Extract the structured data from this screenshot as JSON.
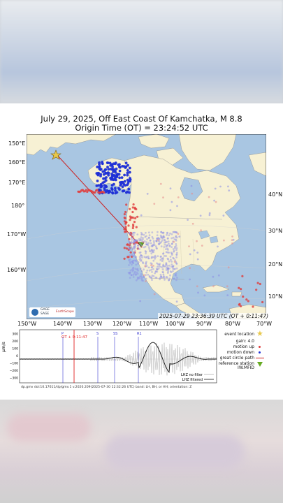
{
  "title": {
    "line1": "July 29, 2025, Off East Coast Of Kamchatka, M 8.8",
    "line2": "Origin Time (OT) = 23:24:52 UTC"
  },
  "map": {
    "left_lat_labels": [
      "150°E",
      "160°E",
      "170°E",
      "180°",
      "170°W",
      "160°W"
    ],
    "right_lat_labels": [
      "40°N",
      "30°N",
      "20°N",
      "10°N"
    ],
    "bottom_lon_labels": [
      "150°W",
      "140°W",
      "130°W",
      "120°W",
      "110°W",
      "100°W",
      "90°W",
      "80°W",
      "70°W"
    ],
    "timestamp": "2025-07-29 23:36:39 UTC (OT + 0:11:47)",
    "colors": {
      "ocean": "#a9c6e2",
      "land": "#f7f1d4",
      "motion_up": "#e03c3c",
      "motion_down": "#1f2fd6",
      "great_circle": "#cc2222",
      "event": "#e8c84a",
      "station": "#66aa22"
    },
    "logo_text": [
      "GAGE",
      "SAGE",
      "EarthScope"
    ]
  },
  "seismogram": {
    "y_label": "μm/s",
    "y_ticks": [
      "300",
      "200",
      "100",
      "0",
      "−100",
      "−200",
      "−300"
    ],
    "phases": [
      "P",
      "S",
      "SS",
      "R1"
    ],
    "ot_label": "OT + 0:11:47",
    "lines_legend": [
      "LHZ no filter",
      "LHZ filtered"
    ]
  },
  "legend": {
    "event_location": "event location",
    "gain": "gain: 4.0",
    "motion_up": "motion up",
    "motion_down": "motion down",
    "great_circle": "great circle path",
    "reference_station": "reference station",
    "station_code": "IW.MFID"
  },
  "footer": "dp.gmv doi:10.17611/dp/gmv.1 v.2020.209(2025-07-30 12:32:26 UTC) band: LH, BH, or HH; orientation: Z"
}
